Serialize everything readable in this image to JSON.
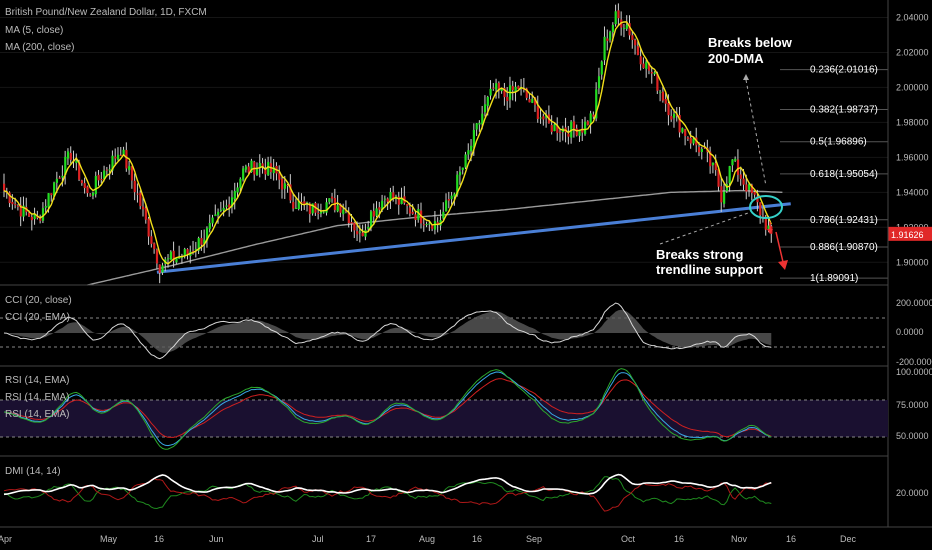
{
  "chart_data": {
    "type": "candlestick",
    "title": "British Pound/New Zealand Dollar, 1D, FXCM",
    "indicators_legend": [
      "MA (5, close)",
      "MA (200, close)"
    ],
    "x_tick_labels": [
      "Apr",
      "May",
      "16",
      "Jun",
      "Jul",
      "17",
      "Aug",
      "16",
      "Sep",
      "Oct",
      "16",
      "Nov",
      "16",
      "Dec"
    ],
    "price_axis": {
      "ticks": [
        "2.04000",
        "2.02000",
        "2.00000",
        "1.98000",
        "1.96000",
        "1.94000",
        "1.92000",
        "1.90000"
      ],
      "ylim": [
        1.887,
        2.05
      ],
      "last_price": "1.91626",
      "last_price_value": 1.91626
    },
    "fibonacci": [
      {
        "label": "0.236(2.01016)",
        "value": 2.01016,
        "color": "#ffffff"
      },
      {
        "label": "0.382(1.98737)",
        "value": 1.98737,
        "color": "#ffffff"
      },
      {
        "label": "0.5(1.96896)",
        "value": 1.96896,
        "color": "#4a8ed6"
      },
      {
        "label": "0.618(1.95054)",
        "value": 1.95054,
        "color": "#ffffff"
      },
      {
        "label": "0.786(1.92431)",
        "value": 1.92431,
        "color": "#ffffff"
      },
      {
        "label": "0.886(1.90870)",
        "value": 1.9087,
        "color": "#ffffff"
      },
      {
        "label": "1(1.89091)",
        "value": 1.89091,
        "color": "#ffffff"
      }
    ],
    "annotations": {
      "breaks_200dma": [
        "Breaks below",
        "200-DMA"
      ],
      "breaks_trendline": [
        "Breaks strong",
        "trendline support"
      ]
    },
    "trendline": {
      "start": [
        55,
        1.8943
      ],
      "end": [
        283,
        1.9335
      ]
    },
    "price_keypoints": [
      [
        0,
        1.941
      ],
      [
        6,
        1.93
      ],
      [
        12,
        1.924
      ],
      [
        18,
        1.945
      ],
      [
        24,
        1.962
      ],
      [
        30,
        1.938
      ],
      [
        36,
        1.952
      ],
      [
        42,
        1.965
      ],
      [
        48,
        1.938
      ],
      [
        52,
        1.918
      ],
      [
        56,
        1.898
      ],
      [
        60,
        1.902
      ],
      [
        66,
        1.905
      ],
      [
        72,
        1.915
      ],
      [
        80,
        1.932
      ],
      [
        86,
        1.952
      ],
      [
        92,
        1.956
      ],
      [
        98,
        1.95
      ],
      [
        104,
        1.935
      ],
      [
        110,
        1.93
      ],
      [
        116,
        1.934
      ],
      [
        122,
        1.932
      ],
      [
        128,
        1.915
      ],
      [
        132,
        1.928
      ],
      [
        138,
        1.939
      ],
      [
        144,
        1.932
      ],
      [
        150,
        1.926
      ],
      [
        156,
        1.922
      ],
      [
        160,
        1.935
      ],
      [
        166,
        1.958
      ],
      [
        172,
        1.985
      ],
      [
        176,
        1.999
      ],
      [
        180,
        1.995
      ],
      [
        185,
        2.0
      ],
      [
        190,
        1.99
      ],
      [
        196,
        1.978
      ],
      [
        202,
        1.976
      ],
      [
        208,
        1.977
      ],
      [
        212,
        1.985
      ],
      [
        216,
        2.026
      ],
      [
        220,
        2.04
      ],
      [
        224,
        2.036
      ],
      [
        228,
        2.02
      ],
      [
        234,
        2.005
      ],
      [
        240,
        1.985
      ],
      [
        246,
        1.972
      ],
      [
        252,
        1.962
      ],
      [
        256,
        1.95
      ],
      [
        258,
        1.938
      ],
      [
        262,
        1.958
      ],
      [
        266,
        1.946
      ],
      [
        270,
        1.936
      ],
      [
        274,
        1.922
      ],
      [
        276,
        1.9163
      ]
    ],
    "panels": [
      {
        "name": "CCI",
        "labels": [
          "CCI (20, close)",
          "CCI (20, EMA)"
        ],
        "ticks": [
          "200.0000",
          "0.0000",
          "-200.0000"
        ]
      },
      {
        "name": "RSI",
        "labels": [
          "RSI (14, EMA)",
          "RSI (14, EMA)",
          "RSI (14, EMA)"
        ],
        "ticks": [
          "100.0000",
          "75.0000",
          "50.0000"
        ]
      },
      {
        "name": "DMI",
        "labels": [
          "DMI (14, 14)"
        ],
        "ticks": [
          "20.0000"
        ]
      }
    ]
  }
}
